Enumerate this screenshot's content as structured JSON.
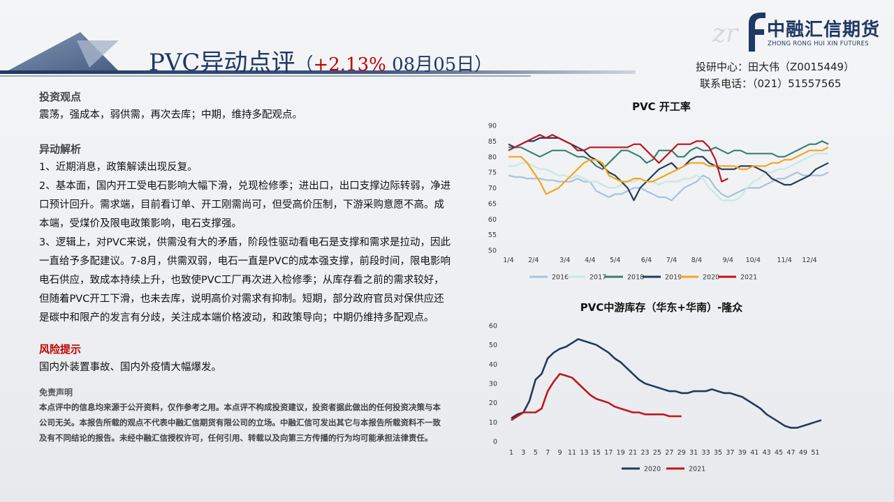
{
  "header": {
    "title": "PVC异动点评",
    "paren_open": "（",
    "change_pct": "+2.13%",
    "date": " 08月05日",
    "paren_close": "）"
  },
  "logo": {
    "cn": "中融汇信期货",
    "en": "ZHONG RONG HUI XIN FUTURES"
  },
  "contact": {
    "analyst": "投研中心：田大伟（Z0015449）",
    "phone": "联系电话：（021）51557565"
  },
  "content": {
    "view_title": "投资观点",
    "view_text": "震荡，强成本，弱供需，再次去库；中期，维持多配观点。",
    "analysis_title": "异动解析",
    "analysis_paragraphs": [
      "1、近期消息，政策解读出现反复。",
      "2、基本面，国内开工受电石影响大幅下滑，兑现检修季；进出口，出口支撑边际转弱，净进口预计回升。需求端，目前看订单、开工刚需尚可，但受高价压制，下游采购意愿不高。成本端，受煤价及限电政策影响，电石支撑强。",
      "3、逻辑上，对PVC来说，供需没有大的矛盾，阶段性驱动看电石是支撑和需求是拉动，因此一直给予多配建议。7-8月，供需双弱，电石一直是PVC的成本强支撑，前段时间，限电影响电石供应，致成本持续上升，也致使PVC工厂再次进入检修季；从库存看之前的需求较好，但随着PVC开工下滑，也未去库，说明高价对需求有抑制。短期，部分政府官员对保供应还是碳中和限产的发言有分歧，关注成本端价格波动，和政策导向；中期仍维持多配观点。"
    ],
    "risk_title": "风险提示",
    "risk_text": "国内外装置事故、国内外疫情大幅爆发。",
    "disclaimer_title": "免责声明",
    "disclaimer_text": "本点评中的信息均来源于公开资料，仅作参考之用。本点评不构成投资建议，投资者据此做出的任何投资决策与本公司无关。本报告所载的观点不代表中融汇信期货有限公司的立场。中融汇信可发出其它与本报告所载资料不一致及有不同结论的报告。未经中融汇信授权许可，任何引用、转载以及向第三方传播的行为均可能承担法律责任。"
  },
  "chart_data": [
    {
      "type": "line",
      "title": "PVC 开工率",
      "ylim": [
        50,
        90
      ],
      "yticks": [
        50,
        55,
        60,
        65,
        70,
        75,
        80,
        85,
        90
      ],
      "xticks": [
        "1/4",
        "2/4",
        "3/4",
        "4/4",
        "5/4",
        "6/4",
        "7/4",
        "8/4",
        "9/4",
        "10/4",
        "11/4",
        "12/4"
      ],
      "x_count": 52,
      "grid": false,
      "legend": "bottom",
      "series": [
        {
          "name": "2016",
          "color": "#a7c3de",
          "values": [
            74,
            73.5,
            73.5,
            73,
            73,
            73,
            72.5,
            72.5,
            72,
            72,
            72,
            73,
            72,
            72,
            69,
            68,
            67,
            68,
            68,
            69,
            70,
            70,
            69,
            68,
            67,
            67,
            66,
            68,
            70,
            71,
            72,
            74,
            73,
            70,
            68,
            67,
            68,
            69,
            70,
            70,
            70,
            71,
            72,
            73,
            73,
            74,
            75,
            74,
            74,
            74,
            74,
            75
          ]
        },
        {
          "name": "2017",
          "color": "#c9e8e1",
          "values": [
            77,
            77,
            78,
            78,
            77,
            76,
            76,
            75,
            74,
            74,
            73,
            74,
            73,
            72,
            72,
            71,
            70,
            70,
            71,
            72,
            72,
            73,
            72,
            72,
            71,
            72,
            72,
            72,
            73,
            73,
            74,
            73,
            70,
            68,
            66,
            66,
            66,
            67,
            70,
            72,
            73,
            75,
            75,
            76,
            76,
            77,
            78,
            79,
            80,
            81,
            81,
            81
          ]
        },
        {
          "name": "2018",
          "color": "#3b8070",
          "values": [
            83,
            83,
            83,
            82,
            81,
            80,
            81,
            82,
            82,
            82,
            81,
            80,
            80,
            79,
            77,
            76,
            78,
            80,
            82,
            82,
            81,
            80,
            78,
            79,
            82,
            82,
            82,
            80,
            80,
            82,
            83,
            82,
            82,
            83,
            82,
            81,
            82,
            82,
            81,
            81,
            81,
            81,
            81,
            80,
            80,
            81,
            82,
            83,
            84,
            84,
            85,
            84
          ]
        },
        {
          "name": "2019",
          "color": "#253a5a",
          "values": [
            84,
            83,
            84,
            85,
            85,
            86,
            86,
            86,
            86,
            85,
            84,
            83,
            82,
            80,
            79,
            77,
            75,
            74,
            72,
            70,
            66,
            70,
            72,
            74,
            76,
            77,
            78,
            76,
            77,
            79,
            80,
            80,
            78,
            77,
            76,
            76,
            76,
            77,
            77,
            77,
            76,
            75,
            73,
            72,
            71,
            71,
            72,
            73,
            74,
            76,
            77,
            78
          ]
        },
        {
          "name": "2020",
          "color": "#f4a518",
          "values": [
            80,
            80,
            80,
            78,
            75,
            72,
            68,
            69,
            70,
            72,
            74,
            76,
            78,
            79,
            79,
            78,
            74,
            73,
            72,
            72,
            73,
            73,
            72,
            72,
            73,
            74,
            75,
            76,
            77,
            78,
            78,
            78,
            77,
            77,
            77,
            77,
            77,
            76,
            76,
            77,
            77,
            77,
            78,
            78,
            79,
            79,
            80,
            81,
            82,
            82,
            82,
            83
          ]
        },
        {
          "name": "2021",
          "color": "#c0151e",
          "values": [
            82,
            83,
            84,
            85,
            86,
            87,
            86,
            87,
            86,
            85,
            84,
            82,
            82,
            83,
            83,
            83,
            83,
            83,
            83,
            83,
            84,
            84,
            82,
            80,
            78,
            80,
            82,
            84,
            84,
            84,
            85,
            85,
            83,
            79,
            72,
            73
          ]
        }
      ]
    },
    {
      "type": "line",
      "title": "PVC中游库存（华东+华南）-隆众",
      "ylim": [
        0,
        60
      ],
      "yticks": [
        0,
        10,
        20,
        30,
        40,
        50,
        60
      ],
      "xticks": [
        "1",
        "3",
        "5",
        "7",
        "9",
        "11",
        "13",
        "15",
        "17",
        "19",
        "21",
        "23",
        "25",
        "27",
        "29",
        "31",
        "33",
        "35",
        "37",
        "39",
        "41",
        "43",
        "45",
        "47",
        "49",
        "51"
      ],
      "x_count": 52,
      "grid": false,
      "legend": "bottom",
      "series": [
        {
          "name": "2020",
          "color": "#253a5a",
          "values": [
            12,
            14,
            15,
            21,
            32,
            35,
            43,
            46,
            48,
            49,
            51,
            53,
            52,
            51,
            50,
            48,
            46,
            43,
            41,
            38,
            35,
            32,
            30,
            29,
            28,
            27,
            26,
            26,
            25,
            25,
            26,
            26,
            26,
            27,
            26,
            25,
            25,
            24,
            23,
            21,
            19,
            17,
            14,
            12,
            10,
            8,
            7,
            7,
            8,
            9,
            10,
            11
          ]
        },
        {
          "name": "2021",
          "color": "#c0151e",
          "values": [
            11,
            13,
            15,
            15,
            15,
            17,
            26,
            31,
            35,
            34,
            33,
            30,
            27,
            24,
            22,
            21,
            20,
            18,
            17,
            16,
            15,
            15,
            14,
            14,
            14,
            14,
            13,
            13,
            13
          ]
        }
      ]
    }
  ]
}
